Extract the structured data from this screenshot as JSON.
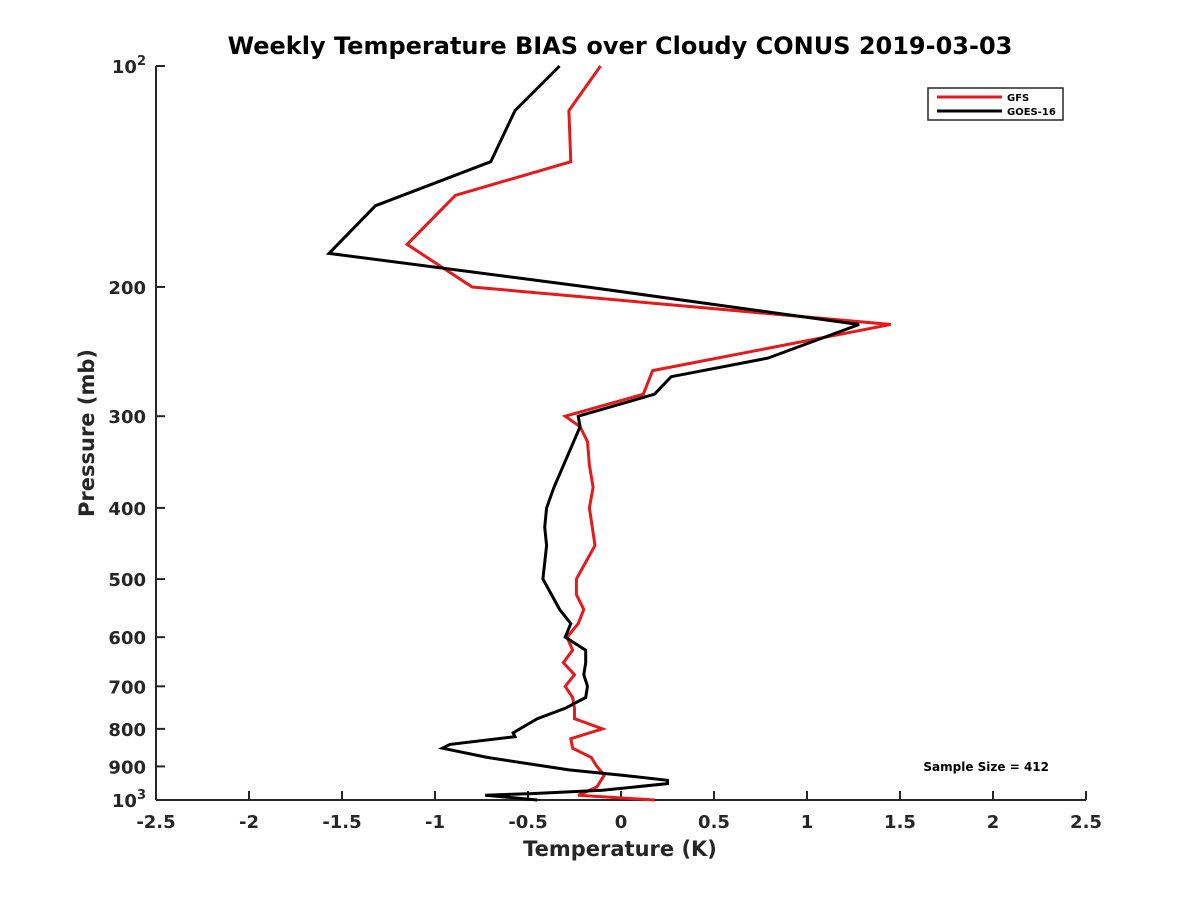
{
  "chart_data": {
    "type": "line",
    "title": "Weekly Temperature BIAS over Cloudy CONUS 2019-03-03",
    "xlabel": "Temperature (K)",
    "ylabel": "Pressure (mb)",
    "xlim": [
      -2.5,
      2.5
    ],
    "ylim": [
      100,
      1000
    ],
    "y_scale": "log",
    "y_reversed": true,
    "x_ticks": [
      "-2.5",
      "-2",
      "-1.5",
      "-1",
      "-0.5",
      "0",
      "0.5",
      "1",
      "1.5",
      "2",
      "2.5"
    ],
    "x_tick_values": [
      -2.5,
      -2,
      -1.5,
      -1,
      -0.5,
      0,
      0.5,
      1,
      1.5,
      2,
      2.5
    ],
    "y_ticks": [
      {
        "value": 100,
        "label": "10",
        "sup": "2"
      },
      {
        "value": 200,
        "label": "200",
        "sup": ""
      },
      {
        "value": 300,
        "label": "300",
        "sup": ""
      },
      {
        "value": 400,
        "label": "400",
        "sup": ""
      },
      {
        "value": 500,
        "label": "500",
        "sup": ""
      },
      {
        "value": 600,
        "label": "600",
        "sup": ""
      },
      {
        "value": 700,
        "label": "700",
        "sup": ""
      },
      {
        "value": 800,
        "label": "800",
        "sup": ""
      },
      {
        "value": 900,
        "label": "900",
        "sup": ""
      },
      {
        "value": 1000,
        "label": "10",
        "sup": "3"
      }
    ],
    "grid": false,
    "legend_position": "top-right",
    "annotation": "Sample Size = 412",
    "series": [
      {
        "name": "GFS",
        "color": "#e41a1c",
        "points": [
          [
            0.18,
            1000
          ],
          [
            -0.23,
            985
          ],
          [
            -0.13,
            960
          ],
          [
            -0.09,
            925
          ],
          [
            -0.13,
            900
          ],
          [
            -0.16,
            875
          ],
          [
            -0.26,
            850
          ],
          [
            -0.27,
            825
          ],
          [
            -0.1,
            800
          ],
          [
            -0.25,
            775
          ],
          [
            -0.25,
            750
          ],
          [
            -0.26,
            725
          ],
          [
            -0.3,
            700
          ],
          [
            -0.25,
            675
          ],
          [
            -0.31,
            650
          ],
          [
            -0.26,
            625
          ],
          [
            -0.29,
            600
          ],
          [
            -0.23,
            575
          ],
          [
            -0.2,
            550
          ],
          [
            -0.24,
            525
          ],
          [
            -0.24,
            500
          ],
          [
            -0.14,
            450
          ],
          [
            -0.17,
            400
          ],
          [
            -0.15,
            375
          ],
          [
            -0.17,
            350
          ],
          [
            -0.18,
            325
          ],
          [
            -0.22,
            310
          ],
          [
            -0.3,
            300
          ],
          [
            0.12,
            280
          ],
          [
            0.17,
            260
          ],
          [
            1.45,
            225
          ],
          [
            -0.8,
            200
          ],
          [
            -1.15,
            175
          ],
          [
            -0.89,
            150
          ],
          [
            -0.27,
            135
          ],
          [
            -0.28,
            115
          ],
          [
            -0.11,
            100
          ]
        ]
      },
      {
        "name": "GOES-16",
        "color": "#000000",
        "points": [
          [
            -0.45,
            1000
          ],
          [
            -0.73,
            985
          ],
          [
            -0.48,
            980
          ],
          [
            -0.1,
            970
          ],
          [
            0.25,
            950
          ],
          [
            0.25,
            940
          ],
          [
            0.0,
            925
          ],
          [
            -0.28,
            910
          ],
          [
            -0.72,
            875
          ],
          [
            -0.96,
            850
          ],
          [
            -0.92,
            840
          ],
          [
            -0.57,
            820
          ],
          [
            -0.58,
            810
          ],
          [
            -0.45,
            775
          ],
          [
            -0.3,
            750
          ],
          [
            -0.19,
            725
          ],
          [
            -0.18,
            700
          ],
          [
            -0.2,
            675
          ],
          [
            -0.19,
            650
          ],
          [
            -0.19,
            625
          ],
          [
            -0.3,
            600
          ],
          [
            -0.27,
            575
          ],
          [
            -0.33,
            550
          ],
          [
            -0.42,
            500
          ],
          [
            -0.41,
            475
          ],
          [
            -0.4,
            450
          ],
          [
            -0.41,
            425
          ],
          [
            -0.4,
            400
          ],
          [
            -0.36,
            375
          ],
          [
            -0.22,
            310
          ],
          [
            -0.23,
            300
          ],
          [
            0.18,
            280
          ],
          [
            0.27,
            265
          ],
          [
            0.79,
            250
          ],
          [
            1.28,
            225
          ],
          [
            -0.18,
            200
          ],
          [
            -1.57,
            180
          ],
          [
            -1.32,
            155
          ],
          [
            -0.7,
            135
          ],
          [
            -0.57,
            115
          ],
          [
            -0.33,
            100
          ]
        ]
      }
    ]
  }
}
